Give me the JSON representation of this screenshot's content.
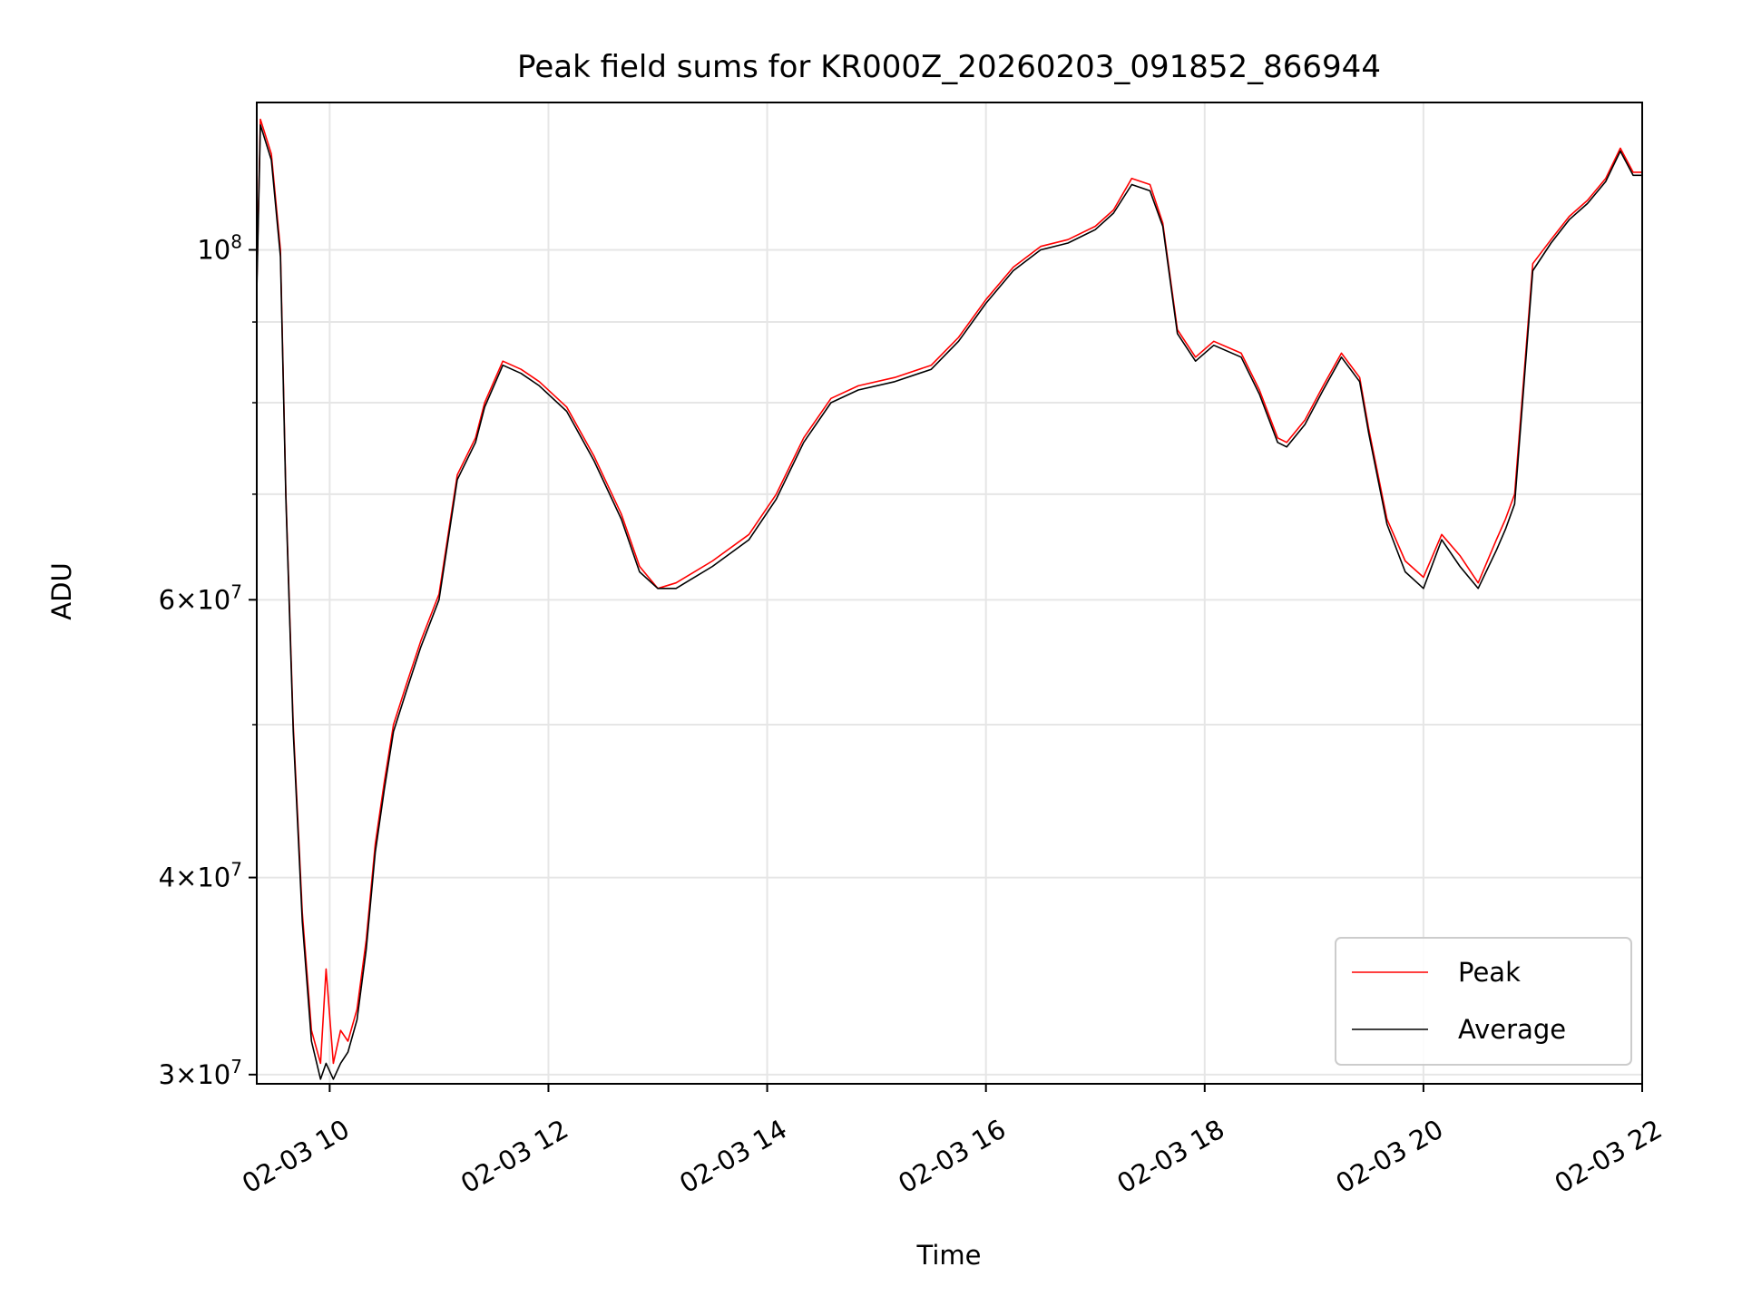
{
  "chart_data": {
    "type": "line",
    "title": "Peak field sums for KR000Z_20260203_091852_866944",
    "xlabel": "Time",
    "ylabel": "ADU",
    "yscale": "log",
    "xlim": [
      "2026-02-03 09:20",
      "2026-02-03 22:00"
    ],
    "ylim": [
      29600000,
      124000000
    ],
    "grid": true,
    "legend_position": "lower right",
    "x_ticks": [
      {
        "time": "2026-02-03 10:00",
        "label": "02-03 10"
      },
      {
        "time": "2026-02-03 12:00",
        "label": "02-03 12"
      },
      {
        "time": "2026-02-03 14:00",
        "label": "02-03 14"
      },
      {
        "time": "2026-02-03 16:00",
        "label": "02-03 16"
      },
      {
        "time": "2026-02-03 18:00",
        "label": "02-03 18"
      },
      {
        "time": "2026-02-03 20:00",
        "label": "02-03 20"
      },
      {
        "time": "2026-02-03 22:00",
        "label": "02-03 22"
      }
    ],
    "y_ticks_major": [
      {
        "value": 30000000,
        "mantissa": "3",
        "exp": "7"
      },
      {
        "value": 40000000,
        "mantissa": "4",
        "exp": "7"
      },
      {
        "value": 60000000,
        "mantissa": "6",
        "exp": "7"
      },
      {
        "value": 100000000,
        "mantissa": "",
        "exp": "8"
      }
    ],
    "y_ticks_minor": [
      50000000,
      70000000,
      80000000,
      90000000
    ],
    "series": [
      {
        "name": "Peak",
        "color": "#ff0000",
        "x": [
          "2026-02-03 09:20",
          "2026-02-03 09:22",
          "2026-02-03 09:24",
          "2026-02-03 09:28",
          "2026-02-03 09:33",
          "2026-02-03 09:36",
          "2026-02-03 09:40",
          "2026-02-03 09:45",
          "2026-02-03 09:50",
          "2026-02-03 09:55",
          "2026-02-03 09:58",
          "2026-02-03 10:02",
          "2026-02-03 10:06",
          "2026-02-03 10:10",
          "2026-02-03 10:15",
          "2026-02-03 10:20",
          "2026-02-03 10:25",
          "2026-02-03 10:30",
          "2026-02-03 10:35",
          "2026-02-03 10:42",
          "2026-02-03 10:50",
          "2026-02-03 11:00",
          "2026-02-03 11:10",
          "2026-02-03 11:20",
          "2026-02-03 11:25",
          "2026-02-03 11:35",
          "2026-02-03 11:45",
          "2026-02-03 11:55",
          "2026-02-03 12:10",
          "2026-02-03 12:25",
          "2026-02-03 12:40",
          "2026-02-03 12:50",
          "2026-02-03 13:00",
          "2026-02-03 13:10",
          "2026-02-03 13:30",
          "2026-02-03 13:50",
          "2026-02-03 14:05",
          "2026-02-03 14:20",
          "2026-02-03 14:35",
          "2026-02-03 14:50",
          "2026-02-03 15:10",
          "2026-02-03 15:30",
          "2026-02-03 15:45",
          "2026-02-03 16:00",
          "2026-02-03 16:15",
          "2026-02-03 16:30",
          "2026-02-03 16:45",
          "2026-02-03 17:00",
          "2026-02-03 17:10",
          "2026-02-03 17:20",
          "2026-02-03 17:30",
          "2026-02-03 17:37",
          "2026-02-03 17:45",
          "2026-02-03 17:55",
          "2026-02-03 18:05",
          "2026-02-03 18:20",
          "2026-02-03 18:30",
          "2026-02-03 18:40",
          "2026-02-03 18:45",
          "2026-02-03 18:55",
          "2026-02-03 19:05",
          "2026-02-03 19:15",
          "2026-02-03 19:25",
          "2026-02-03 19:30",
          "2026-02-03 19:40",
          "2026-02-03 19:50",
          "2026-02-03 20:00",
          "2026-02-03 20:10",
          "2026-02-03 20:20",
          "2026-02-03 20:30",
          "2026-02-03 20:40",
          "2026-02-03 20:45",
          "2026-02-03 20:50",
          "2026-02-03 21:00",
          "2026-02-03 21:10",
          "2026-02-03 21:20",
          "2026-02-03 21:30",
          "2026-02-03 21:40",
          "2026-02-03 21:48",
          "2026-02-03 21:55",
          "2026-02-03 22:00"
        ],
        "y": [
          95000000,
          121000000,
          119000000,
          115000000,
          100000000,
          70000000,
          50000000,
          38000000,
          32000000,
          30500000,
          35000000,
          30500000,
          32000000,
          31500000,
          33000000,
          36500000,
          42000000,
          46000000,
          50000000,
          53000000,
          56500000,
          60500000,
          72000000,
          76000000,
          80000000,
          85000000,
          84000000,
          82500000,
          79500000,
          74000000,
          68000000,
          63000000,
          61000000,
          61500000,
          63500000,
          66000000,
          70000000,
          76000000,
          80500000,
          82000000,
          83000000,
          84500000,
          88000000,
          93000000,
          97500000,
          100500000,
          101500000,
          103500000,
          106000000,
          111000000,
          110000000,
          104000000,
          89000000,
          85500000,
          87500000,
          86000000,
          81500000,
          76000000,
          75500000,
          78000000,
          82000000,
          86000000,
          83000000,
          77000000,
          67500000,
          63500000,
          62000000,
          66000000,
          64000000,
          61500000,
          65500000,
          67500000,
          70000000,
          98000000,
          101500000,
          105000000,
          107500000,
          111000000,
          116000000,
          112000000,
          112000000
        ]
      },
      {
        "name": "Average",
        "color": "#000000",
        "x": [
          "2026-02-03 09:20",
          "2026-02-03 09:22",
          "2026-02-03 09:24",
          "2026-02-03 09:28",
          "2026-02-03 09:33",
          "2026-02-03 09:36",
          "2026-02-03 09:40",
          "2026-02-03 09:45",
          "2026-02-03 09:50",
          "2026-02-03 09:55",
          "2026-02-03 09:58",
          "2026-02-03 10:02",
          "2026-02-03 10:06",
          "2026-02-03 10:10",
          "2026-02-03 10:15",
          "2026-02-03 10:20",
          "2026-02-03 10:25",
          "2026-02-03 10:30",
          "2026-02-03 10:35",
          "2026-02-03 10:42",
          "2026-02-03 10:50",
          "2026-02-03 11:00",
          "2026-02-03 11:10",
          "2026-02-03 11:20",
          "2026-02-03 11:25",
          "2026-02-03 11:35",
          "2026-02-03 11:45",
          "2026-02-03 11:55",
          "2026-02-03 12:10",
          "2026-02-03 12:25",
          "2026-02-03 12:40",
          "2026-02-03 12:50",
          "2026-02-03 13:00",
          "2026-02-03 13:10",
          "2026-02-03 13:30",
          "2026-02-03 13:50",
          "2026-02-03 14:05",
          "2026-02-03 14:20",
          "2026-02-03 14:35",
          "2026-02-03 14:50",
          "2026-02-03 15:10",
          "2026-02-03 15:30",
          "2026-02-03 15:45",
          "2026-02-03 16:00",
          "2026-02-03 16:15",
          "2026-02-03 16:30",
          "2026-02-03 16:45",
          "2026-02-03 17:00",
          "2026-02-03 17:10",
          "2026-02-03 17:20",
          "2026-02-03 17:30",
          "2026-02-03 17:37",
          "2026-02-03 17:45",
          "2026-02-03 17:55",
          "2026-02-03 18:05",
          "2026-02-03 18:20",
          "2026-02-03 18:30",
          "2026-02-03 18:40",
          "2026-02-03 18:45",
          "2026-02-03 18:55",
          "2026-02-03 19:05",
          "2026-02-03 19:15",
          "2026-02-03 19:25",
          "2026-02-03 19:30",
          "2026-02-03 19:40",
          "2026-02-03 19:50",
          "2026-02-03 20:00",
          "2026-02-03 20:10",
          "2026-02-03 20:20",
          "2026-02-03 20:30",
          "2026-02-03 20:40",
          "2026-02-03 20:45",
          "2026-02-03 20:50",
          "2026-02-03 21:00",
          "2026-02-03 21:10",
          "2026-02-03 21:20",
          "2026-02-03 21:30",
          "2026-02-03 21:40",
          "2026-02-03 21:48",
          "2026-02-03 21:55",
          "2026-02-03 22:00"
        ],
        "y": [
          94000000,
          120000000,
          118000000,
          114000000,
          99000000,
          69500000,
          49500000,
          37500000,
          31500000,
          29800000,
          30500000,
          29800000,
          30500000,
          31000000,
          32500000,
          36000000,
          41500000,
          45500000,
          49500000,
          52500000,
          56000000,
          60000000,
          71500000,
          75500000,
          79500000,
          84500000,
          83500000,
          82000000,
          79000000,
          73500000,
          67500000,
          62500000,
          61000000,
          61000000,
          63000000,
          65500000,
          69500000,
          75500000,
          80000000,
          81500000,
          82500000,
          84000000,
          87500000,
          92500000,
          97000000,
          100000000,
          101000000,
          103000000,
          105500000,
          110000000,
          109000000,
          103500000,
          88500000,
          85000000,
          87000000,
          85500000,
          81000000,
          75500000,
          75000000,
          77500000,
          81500000,
          85500000,
          82500000,
          76500000,
          67000000,
          62500000,
          61000000,
          65500000,
          63000000,
          61000000,
          64500000,
          66500000,
          69000000,
          97000000,
          101000000,
          104500000,
          107000000,
          110500000,
          115500000,
          111500000,
          111500000
        ]
      }
    ]
  }
}
